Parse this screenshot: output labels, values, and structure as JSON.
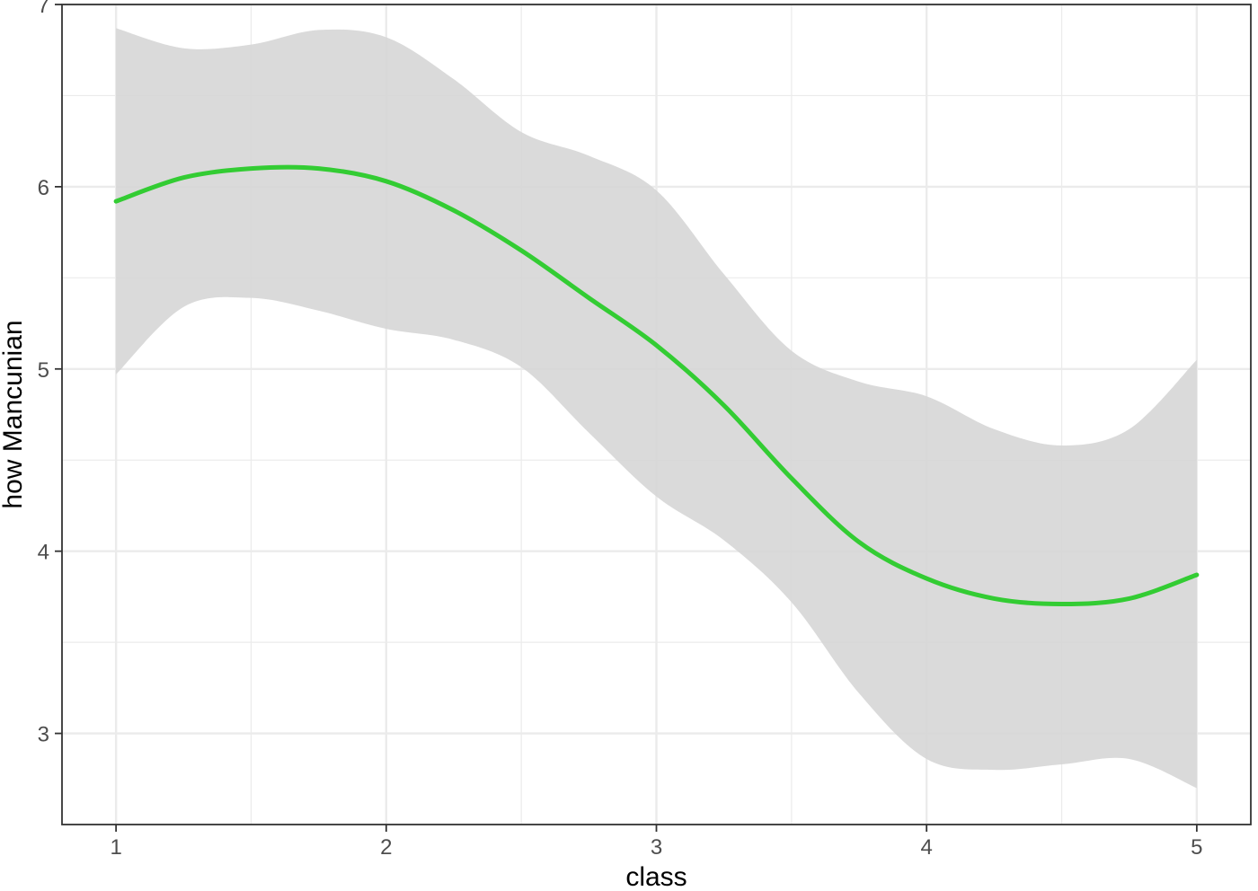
{
  "chart_data": {
    "type": "line",
    "title": "",
    "xlabel": "class",
    "ylabel": "how Mancunian",
    "xlim": [
      0.8,
      5.2
    ],
    "ylim": [
      2.5,
      7.0
    ],
    "x_ticks": [
      1,
      2,
      3,
      4,
      5
    ],
    "y_ticks": [
      3,
      4,
      5,
      6,
      7
    ],
    "x_tick_labels": [
      "1",
      "2",
      "3",
      "4",
      "5"
    ],
    "y_tick_labels": [
      "3",
      "4",
      "5",
      "6",
      "7"
    ],
    "grid": true,
    "legend": "none",
    "colors": {
      "line": "#33cc33",
      "ribbon": "#d6d6d6",
      "grid": "#ebebeb",
      "border": "#333333"
    },
    "series": [
      {
        "x": [
          1.0,
          1.25,
          1.5,
          1.75,
          2.0,
          2.25,
          2.5,
          2.75,
          3.0,
          3.25,
          3.5,
          3.75,
          4.0,
          4.25,
          4.5,
          4.75,
          5.0
        ],
        "y": [
          5.92,
          6.05,
          6.1,
          6.1,
          6.03,
          5.87,
          5.65,
          5.39,
          5.13,
          4.8,
          4.4,
          4.05,
          3.85,
          3.74,
          3.71,
          3.74,
          3.87
        ],
        "lower": [
          4.97,
          5.34,
          5.39,
          5.32,
          5.22,
          5.16,
          5.01,
          4.65,
          4.3,
          4.06,
          3.72,
          3.22,
          2.86,
          2.8,
          2.83,
          2.86,
          2.7
        ],
        "upper": [
          6.87,
          6.76,
          6.78,
          6.86,
          6.82,
          6.59,
          6.3,
          6.17,
          5.98,
          5.52,
          5.1,
          4.93,
          4.85,
          4.67,
          4.58,
          4.67,
          5.05
        ]
      }
    ]
  }
}
